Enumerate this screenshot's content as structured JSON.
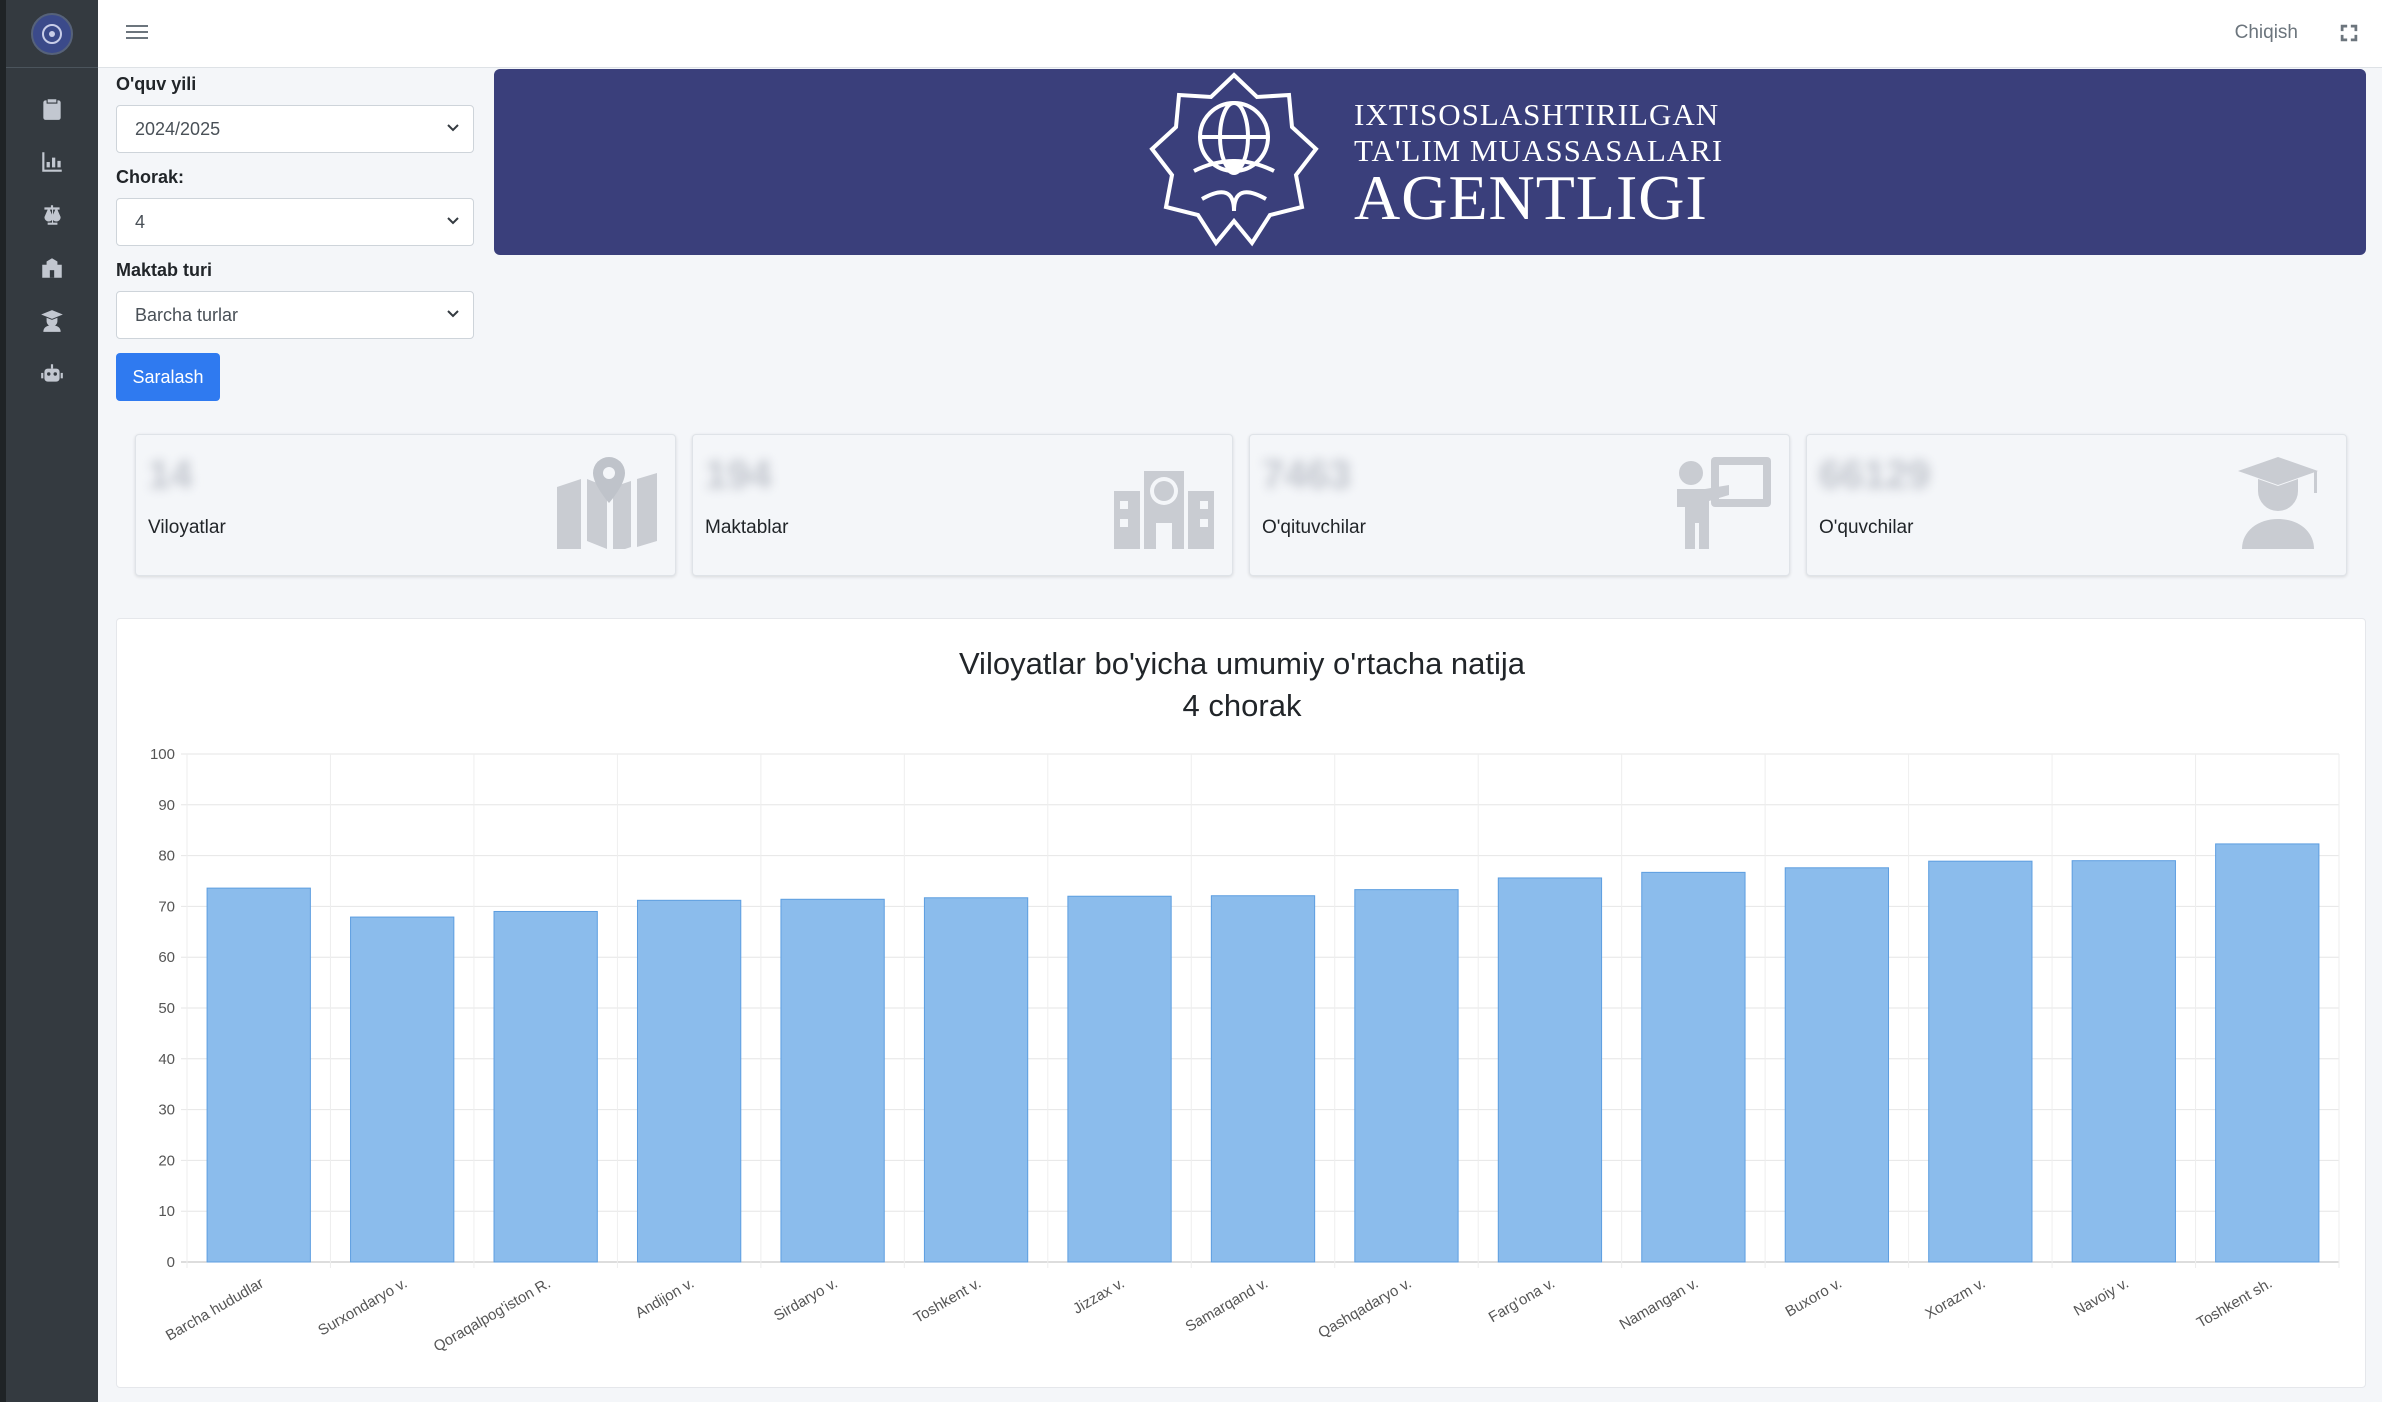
{
  "sidebar": {
    "items": [
      {
        "icon": "clipboard-icon"
      },
      {
        "icon": "bar-chart-icon"
      },
      {
        "icon": "balance-scale-icon"
      },
      {
        "icon": "school-icon"
      },
      {
        "icon": "graduate-icon"
      },
      {
        "icon": "robot-icon"
      }
    ]
  },
  "topbar": {
    "logout_label": "Chiqish"
  },
  "filters": {
    "year_label": "O'quv yili",
    "year_value": "2024/2025",
    "quarter_label": "Chorak:",
    "quarter_value": "4",
    "school_type_label": "Maktab turi",
    "school_type_value": "Barcha turlar",
    "submit_label": "Saralash"
  },
  "banner": {
    "line1": "IXTISOSLASHTIRILGAN",
    "line2": "TA'LIM MUASSASALARI",
    "line3": "AGENTLIGI",
    "color": "#3a3f7b"
  },
  "stats": [
    {
      "label": "Viloyatlar",
      "value": "14",
      "icon": "map-marker-icon"
    },
    {
      "label": "Maktablar",
      "value": "194",
      "icon": "school-building-icon"
    },
    {
      "label": "O'qituvchilar",
      "value": "7463",
      "icon": "teacher-icon"
    },
    {
      "label": "O'quvchilar",
      "value": "66129",
      "icon": "student-graduate-icon"
    }
  ],
  "chart_data": {
    "type": "bar",
    "title": "Viloyatlar bo'yicha umumiy o'rtacha natija",
    "subtitle": "4 chorak",
    "categories": [
      "Barcha hududlar",
      "Surxondaryo v.",
      "Qoraqalpog'iston R.",
      "Andijon v.",
      "Sirdaryo v.",
      "Toshkent v.",
      "Jizzax v.",
      "Samarqand v.",
      "Qashqadaryo v.",
      "Farg'ona v.",
      "Namangan v.",
      "Buxoro v.",
      "Xorazm v.",
      "Navoiy v.",
      "Toshkent sh."
    ],
    "values": [
      73.6,
      67.9,
      69.0,
      71.2,
      71.4,
      71.7,
      72.0,
      72.1,
      73.3,
      75.6,
      76.7,
      77.6,
      78.9,
      79.0,
      82.3
    ],
    "ylim": [
      0,
      100
    ],
    "yticks": [
      0,
      10,
      20,
      30,
      40,
      50,
      60,
      70,
      80,
      90,
      100
    ],
    "grid": true,
    "bar_color": "#8bbcec",
    "bar_border": "#5d9ee0"
  }
}
